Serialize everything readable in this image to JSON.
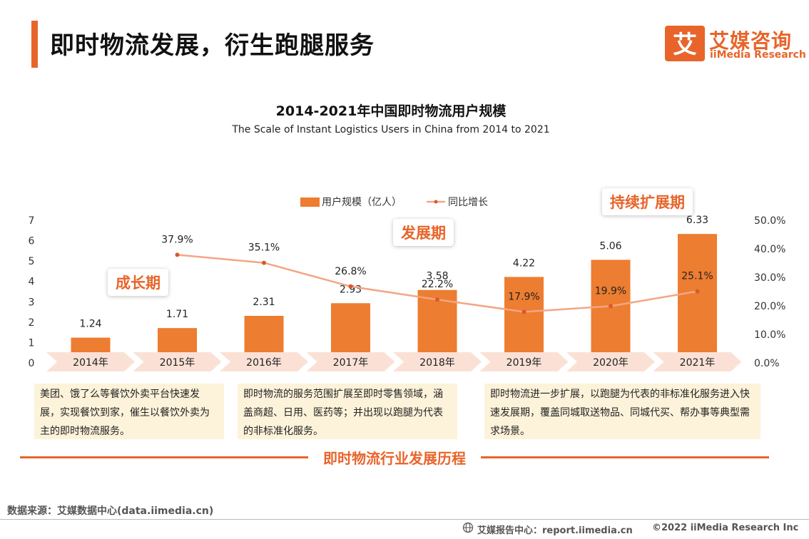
{
  "header": {
    "title": "即时物流发展，衍生跑腿服务"
  },
  "brand": {
    "logo_glyph": "艾",
    "name_cn": "艾媒咨询",
    "name_en": "iiMedia Research",
    "color": "#E8642A"
  },
  "chart_data": {
    "type": "bar",
    "title": "2014-2021年中国即时物流用户规模",
    "subtitle": "The Scale of Instant Logistics Users in China from 2014 to 2021",
    "categories": [
      "2014年",
      "2015年",
      "2016年",
      "2017年",
      "2018年",
      "2019年",
      "2020年",
      "2021年"
    ],
    "series": [
      {
        "name": "用户规模（亿人）",
        "type": "bar",
        "axis": "left",
        "color": "#ED7D31",
        "values": [
          1.24,
          1.71,
          2.31,
          2.93,
          3.58,
          4.22,
          5.06,
          6.33
        ],
        "labels": [
          "1.24",
          "1.71",
          "2.31",
          "2.93",
          "3.58",
          "4.22",
          "5.06",
          "6.33"
        ]
      },
      {
        "name": "同比增长",
        "type": "line",
        "axis": "right",
        "color": "#F4A583",
        "marker_color": "#D65A2A",
        "values": [
          null,
          37.9,
          35.1,
          26.8,
          22.2,
          17.9,
          19.9,
          25.1
        ],
        "labels": [
          "",
          "37.9%",
          "35.1%",
          "26.8%",
          "22.2%",
          "17.9%",
          "19.9%",
          "25.1%"
        ]
      }
    ],
    "y_left": {
      "min": 0,
      "max": 7,
      "ticks": [
        "0",
        "1",
        "2",
        "3",
        "4",
        "5",
        "6",
        "7"
      ]
    },
    "y_right": {
      "min": 0,
      "max": 50,
      "ticks": [
        "0.0%",
        "10.0%",
        "20.0%",
        "30.0%",
        "40.0%",
        "50.0%"
      ]
    },
    "grid": false,
    "legend_position": "top-center",
    "annotations": [
      "成长期",
      "发展期",
      "持续扩展期"
    ]
  },
  "stages": [
    {
      "label": "成长期",
      "description": "美团、饿了么等餐饮外卖平台快速发展，实现餐饮到家，催生以餐饮外卖为主的即时物流服务。"
    },
    {
      "label": "发展期",
      "description": "即时物流的服务范围扩展至即时零售领域，涵盖商超、日用、医药等；并出现以跑腿为代表的非标准化服务。"
    },
    {
      "label": "持续扩展期",
      "description": "即时物流进一步扩展，以跑腿为代表的非标准化服务进入快速发展期，覆盖同城取送物品、同城代买、帮办事等典型需求场景。"
    }
  ],
  "timeline": {
    "label": "即时物流行业发展历程"
  },
  "footer": {
    "source": "数据来源：艾媒数据中心(data.iimedia.cn)",
    "report_center": "艾媒报告中心：report.iimedia.cn",
    "copyright": "©2022  iiMedia Research  Inc"
  }
}
